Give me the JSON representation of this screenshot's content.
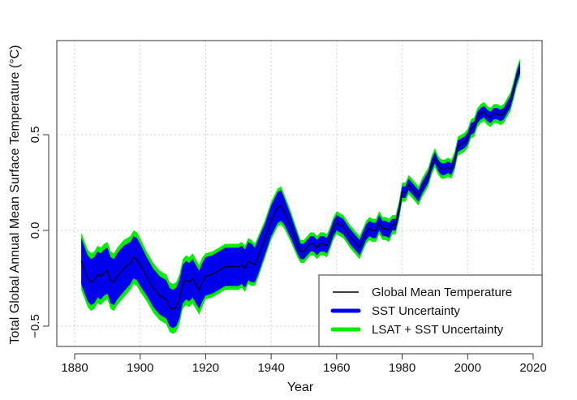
{
  "chart_data": {
    "type": "area",
    "title": "",
    "xlabel": "Year",
    "ylabel": "Total Global Annual Mean Surface Temperature (°C)",
    "xlim": [
      1876,
      2022
    ],
    "ylim": [
      -0.6,
      0.98
    ],
    "x_ticks": [
      1880,
      1900,
      1920,
      1940,
      1960,
      1980,
      2000,
      2020
    ],
    "x_tick_labels": [
      "1880",
      "1900",
      "1920",
      "1940",
      "1960",
      "1980",
      "2000",
      "2020"
    ],
    "y_ticks": [
      -0.5,
      0.0,
      0.5
    ],
    "y_tick_labels": [
      "-0.5",
      "0.0",
      "0.5"
    ],
    "grid": true,
    "legend_position": "bottom-right",
    "legend": [
      {
        "label": "Global Mean Temperature",
        "color": "#000000",
        "kind": "line"
      },
      {
        "label": "SST Uncertainty",
        "color": "#0000ee",
        "kind": "band"
      },
      {
        "label": "LSAT + SST Uncertainty",
        "color": "#00ee00",
        "kind": "band"
      }
    ],
    "x": [
      1882,
      1884,
      1885,
      1886,
      1887,
      1888,
      1889,
      1890,
      1891,
      1892,
      1893,
      1895,
      1897,
      1898,
      1899,
      1900,
      1902,
      1904,
      1906,
      1908,
      1909,
      1910,
      1911,
      1912,
      1913,
      1914,
      1915,
      1916,
      1917,
      1918,
      1919,
      1920,
      1922,
      1924,
      1926,
      1928,
      1930,
      1931,
      1932,
      1933,
      1934,
      1935,
      1936,
      1938,
      1940,
      1942,
      1943,
      1944,
      1946,
      1948,
      1949,
      1950,
      1951,
      1952,
      1953,
      1954,
      1955,
      1956,
      1957,
      1958,
      1959,
      1960,
      1961,
      1962,
      1964,
      1966,
      1967,
      1968,
      1969,
      1970,
      1971,
      1972,
      1973,
      1974,
      1975,
      1976,
      1977,
      1978,
      1979,
      1980,
      1981,
      1982,
      1983,
      1984,
      1985,
      1986,
      1988,
      1989,
      1990,
      1991,
      1992,
      1993,
      1994,
      1995,
      1996,
      1997,
      1998,
      1999,
      2000,
      2001,
      2002,
      2003,
      2004,
      2005,
      2006,
      2007,
      2008,
      2009,
      2010,
      2011,
      2012,
      2013,
      2014,
      2015,
      2016
    ],
    "series": [
      {
        "name": "Global Mean Temperature",
        "values": [
          -0.16,
          -0.25,
          -0.27,
          -0.26,
          -0.23,
          -0.24,
          -0.22,
          -0.21,
          -0.26,
          -0.27,
          -0.24,
          -0.2,
          -0.17,
          -0.14,
          -0.15,
          -0.18,
          -0.24,
          -0.3,
          -0.34,
          -0.36,
          -0.4,
          -0.41,
          -0.4,
          -0.36,
          -0.28,
          -0.26,
          -0.27,
          -0.25,
          -0.28,
          -0.31,
          -0.27,
          -0.24,
          -0.23,
          -0.21,
          -0.19,
          -0.19,
          -0.19,
          -0.18,
          -0.2,
          -0.16,
          -0.17,
          -0.18,
          -0.14,
          -0.05,
          0.05,
          0.12,
          0.13,
          0.1,
          0.02,
          -0.07,
          -0.11,
          -0.11,
          -0.09,
          -0.07,
          -0.07,
          -0.09,
          -0.07,
          -0.07,
          -0.08,
          -0.04,
          0.01,
          0.04,
          0.03,
          0.02,
          -0.03,
          -0.07,
          -0.09,
          -0.05,
          -0.01,
          0.01,
          0.0,
          0.0,
          0.04,
          0.01,
          0.01,
          0.0,
          0.03,
          0.03,
          0.1,
          0.2,
          0.2,
          0.24,
          0.22,
          0.2,
          0.18,
          0.22,
          0.28,
          0.34,
          0.38,
          0.34,
          0.32,
          0.32,
          0.33,
          0.32,
          0.36,
          0.44,
          0.45,
          0.46,
          0.48,
          0.53,
          0.54,
          0.59,
          0.61,
          0.62,
          0.6,
          0.59,
          0.61,
          0.61,
          0.6,
          0.61,
          0.64,
          0.67,
          0.73,
          0.8,
          0.85
        ]
      },
      {
        "name": "SST Uncertainty",
        "half_width": [
          0.12,
          0.12,
          0.12,
          0.12,
          0.12,
          0.12,
          0.12,
          0.12,
          0.12,
          0.12,
          0.12,
          0.12,
          0.11,
          0.11,
          0.11,
          0.11,
          0.1,
          0.1,
          0.1,
          0.1,
          0.1,
          0.1,
          0.1,
          0.1,
          0.1,
          0.1,
          0.1,
          0.1,
          0.1,
          0.1,
          0.1,
          0.1,
          0.1,
          0.1,
          0.1,
          0.1,
          0.1,
          0.1,
          0.1,
          0.1,
          0.1,
          0.09,
          0.09,
          0.08,
          0.08,
          0.08,
          0.08,
          0.07,
          0.06,
          0.05,
          0.04,
          0.04,
          0.04,
          0.04,
          0.04,
          0.04,
          0.04,
          0.04,
          0.04,
          0.04,
          0.04,
          0.04,
          0.04,
          0.04,
          0.04,
          0.04,
          0.04,
          0.04,
          0.04,
          0.04,
          0.04,
          0.04,
          0.04,
          0.04,
          0.04,
          0.04,
          0.03,
          0.03,
          0.03,
          0.03,
          0.03,
          0.03,
          0.03,
          0.03,
          0.03,
          0.03,
          0.03,
          0.03,
          0.03,
          0.03,
          0.03,
          0.03,
          0.03,
          0.03,
          0.03,
          0.03,
          0.03,
          0.03,
          0.03,
          0.03,
          0.03,
          0.03,
          0.03,
          0.03,
          0.03,
          0.03,
          0.03,
          0.03,
          0.03,
          0.03,
          0.03,
          0.03,
          0.03,
          0.03,
          0.03
        ]
      },
      {
        "name": "LSAT + SST Uncertainty",
        "half_width": [
          0.15,
          0.15,
          0.15,
          0.15,
          0.15,
          0.15,
          0.15,
          0.15,
          0.15,
          0.15,
          0.15,
          0.15,
          0.14,
          0.14,
          0.14,
          0.14,
          0.13,
          0.13,
          0.13,
          0.13,
          0.13,
          0.13,
          0.13,
          0.13,
          0.13,
          0.13,
          0.13,
          0.13,
          0.13,
          0.13,
          0.13,
          0.12,
          0.12,
          0.12,
          0.12,
          0.12,
          0.12,
          0.12,
          0.12,
          0.12,
          0.12,
          0.11,
          0.11,
          0.1,
          0.1,
          0.1,
          0.1,
          0.09,
          0.08,
          0.07,
          0.06,
          0.06,
          0.06,
          0.06,
          0.06,
          0.06,
          0.06,
          0.06,
          0.06,
          0.06,
          0.06,
          0.06,
          0.06,
          0.06,
          0.06,
          0.06,
          0.06,
          0.06,
          0.06,
          0.06,
          0.06,
          0.06,
          0.06,
          0.06,
          0.06,
          0.06,
          0.05,
          0.05,
          0.05,
          0.05,
          0.05,
          0.05,
          0.05,
          0.05,
          0.05,
          0.05,
          0.05,
          0.05,
          0.05,
          0.05,
          0.05,
          0.05,
          0.05,
          0.05,
          0.05,
          0.05,
          0.05,
          0.05,
          0.05,
          0.05,
          0.05,
          0.05,
          0.05,
          0.05,
          0.05,
          0.05,
          0.05,
          0.05,
          0.05,
          0.05,
          0.05,
          0.05,
          0.05,
          0.05,
          0.05
        ]
      }
    ]
  }
}
